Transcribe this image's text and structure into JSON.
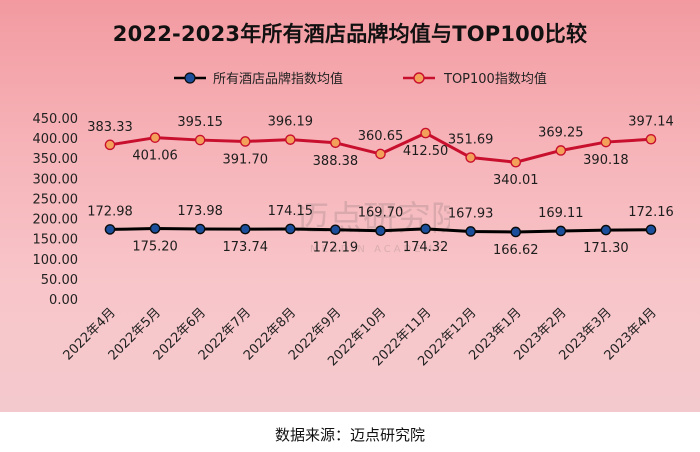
{
  "chart_data": {
    "type": "line",
    "title": "2022-2023年所有酒店品牌均值与TOP100比较",
    "categories": [
      "2022年4月",
      "2022年5月",
      "2022年6月",
      "2022年7月",
      "2022年8月",
      "2022年9月",
      "2022年10月",
      "2022年11月",
      "2022年12月",
      "2023年1月",
      "2023年2月",
      "2023年3月",
      "2023年4月"
    ],
    "series": [
      {
        "name": "所有酒店品牌指数均值",
        "color": "#000000",
        "values": [
          172.98,
          175.2,
          173.98,
          173.74,
          174.15,
          172.19,
          169.7,
          174.32,
          167.93,
          166.62,
          169.11,
          171.3,
          172.16
        ],
        "labels": [
          "172.98",
          "175.20",
          "173.98",
          "173.74",
          "174.15",
          "172.19",
          "169.70",
          "174.32",
          "167.93",
          "166.62",
          "169.11",
          "171.30",
          "172.16"
        ]
      },
      {
        "name": "TOP100指数均值",
        "color": "#c8102e",
        "values": [
          383.33,
          401.06,
          395.15,
          391.7,
          396.19,
          388.38,
          360.65,
          412.5,
          351.69,
          340.01,
          369.25,
          390.18,
          397.14
        ],
        "labels": [
          "383.33",
          "401.06",
          "395.15",
          "391.70",
          "396.19",
          "388.38",
          "360.65",
          "412.50",
          "351.69",
          "340.01",
          "369.25",
          "390.18",
          "397.14"
        ]
      }
    ],
    "yticks": [
      "0.00",
      "50.00",
      "100.00",
      "150.00",
      "200.00",
      "250.00",
      "300.00",
      "350.00",
      "400.00",
      "450.00"
    ],
    "ylim": [
      0,
      450
    ],
    "legend_position": "top"
  },
  "watermark": {
    "text": "迈点研究院",
    "subtext": "MEADIN ACADEMY"
  },
  "source_note": "数据来源：迈点研究院"
}
